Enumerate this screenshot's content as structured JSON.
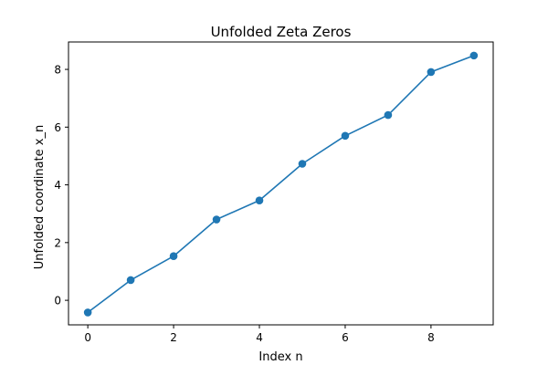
{
  "chart_data": {
    "type": "line",
    "title": "Unfolded Zeta Zeros",
    "xlabel": "Index n",
    "ylabel": "Unfolded coordinate x_n",
    "xlim": [
      -0.45,
      9.45
    ],
    "ylim": [
      -0.85,
      8.95
    ],
    "xticks": [
      0,
      2,
      4,
      6,
      8
    ],
    "yticks": [
      0,
      2,
      4,
      6,
      8
    ],
    "grid": false,
    "series": [
      {
        "color": "#1f77b4",
        "marker": "circle",
        "x": [
          0,
          1,
          2,
          3,
          4,
          5,
          6,
          7,
          8,
          9
        ],
        "y": [
          -0.42,
          0.7,
          1.53,
          2.8,
          3.46,
          4.73,
          5.7,
          6.42,
          7.91,
          8.48
        ]
      }
    ]
  }
}
